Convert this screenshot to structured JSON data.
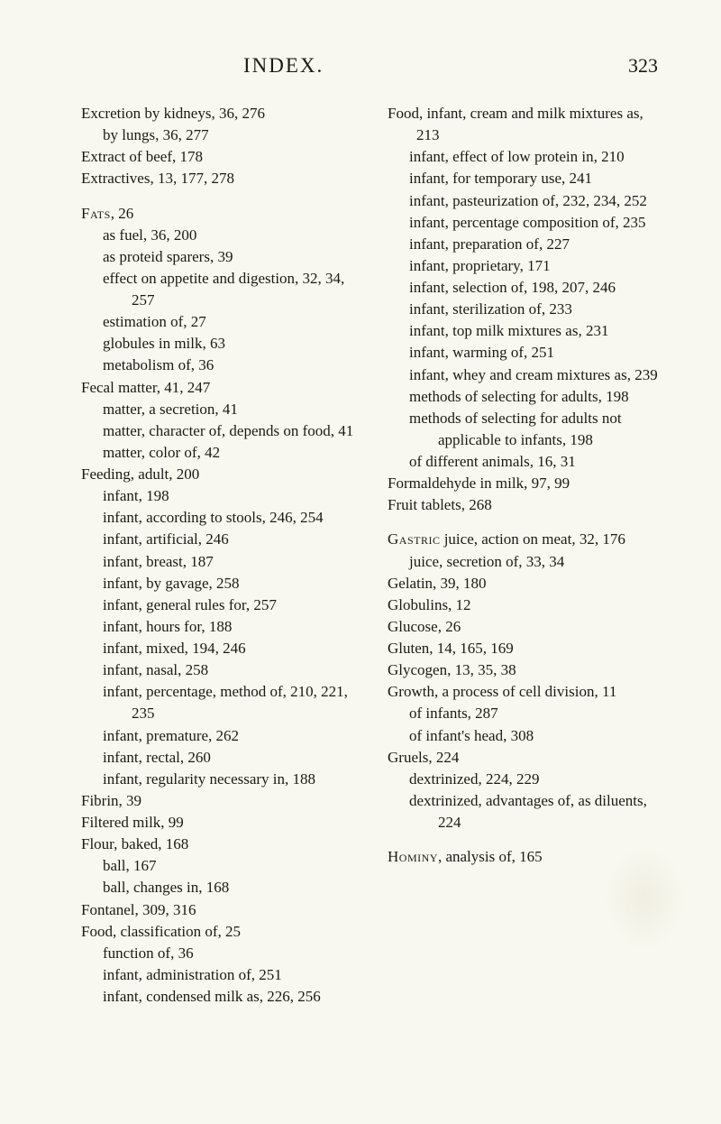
{
  "header": {
    "title": "INDEX.",
    "page_number": "323"
  },
  "left": [
    {
      "t": "entry",
      "text": "Excretion by kidneys, 36, 276"
    },
    {
      "t": "sub",
      "text": "by lungs, 36, 277"
    },
    {
      "t": "entry",
      "text": "Extract of beef, 178"
    },
    {
      "t": "entry",
      "text": "Extractives, 13, 177, 278"
    },
    {
      "t": "gap"
    },
    {
      "t": "entry",
      "topic": "Fats",
      "rest": ", 26"
    },
    {
      "t": "sub",
      "text": "as fuel, 36, 200"
    },
    {
      "t": "sub",
      "text": "as proteid sparers, 39"
    },
    {
      "t": "sub",
      "text": "effect on appetite and digestion, 32, 34, 257"
    },
    {
      "t": "sub",
      "text": "estimation of, 27"
    },
    {
      "t": "sub",
      "text": "globules in milk, 63"
    },
    {
      "t": "sub",
      "text": "metabolism of, 36"
    },
    {
      "t": "entry",
      "text": "Fecal matter, 41, 247"
    },
    {
      "t": "sub",
      "text": "matter, a secretion, 41"
    },
    {
      "t": "sub",
      "text": "matter, character of, depends on food, 41"
    },
    {
      "t": "sub",
      "text": "matter, color of, 42"
    },
    {
      "t": "entry",
      "text": "Feeding, adult, 200"
    },
    {
      "t": "sub",
      "text": "infant, 198"
    },
    {
      "t": "sub",
      "text": "infant, according to stools, 246, 254"
    },
    {
      "t": "sub",
      "text": "infant, artificial, 246"
    },
    {
      "t": "sub",
      "text": "infant, breast, 187"
    },
    {
      "t": "sub",
      "text": "infant, by gavage, 258"
    },
    {
      "t": "sub",
      "text": "infant, general rules for, 257"
    },
    {
      "t": "sub",
      "text": "infant, hours for, 188"
    },
    {
      "t": "sub",
      "text": "infant, mixed, 194, 246"
    },
    {
      "t": "sub",
      "text": "infant, nasal, 258"
    },
    {
      "t": "sub",
      "text": "infant, percentage, method of, 210, 221, 235"
    },
    {
      "t": "sub",
      "text": "infant, premature, 262"
    },
    {
      "t": "sub",
      "text": "infant, rectal, 260"
    },
    {
      "t": "sub",
      "text": "infant, regularity necessary in, 188"
    },
    {
      "t": "entry",
      "text": "Fibrin, 39"
    },
    {
      "t": "entry",
      "text": "Filtered milk, 99"
    },
    {
      "t": "entry",
      "text": "Flour, baked, 168"
    },
    {
      "t": "sub",
      "text": "ball, 167"
    },
    {
      "t": "sub",
      "text": "ball, changes in, 168"
    },
    {
      "t": "entry",
      "text": "Fontanel, 309, 316"
    },
    {
      "t": "entry",
      "text": "Food, classification of, 25"
    },
    {
      "t": "sub",
      "text": "function of, 36"
    },
    {
      "t": "sub",
      "text": "infant, administration of, 251"
    },
    {
      "t": "sub",
      "text": "infant, condensed milk as, 226, 256"
    }
  ],
  "right": [
    {
      "t": "entry",
      "text": "Food, infant, cream and milk mixtures as, 213"
    },
    {
      "t": "sub",
      "text": "infant, effect of low protein in, 210"
    },
    {
      "t": "sub",
      "text": "infant, for temporary use, 241"
    },
    {
      "t": "sub",
      "text": "infant, pasteurization of, 232, 234, 252"
    },
    {
      "t": "sub",
      "text": "infant, percentage composition of, 235"
    },
    {
      "t": "sub",
      "text": "infant, preparation of, 227"
    },
    {
      "t": "sub",
      "text": "infant, proprietary, 171"
    },
    {
      "t": "sub",
      "text": "infant, selection of, 198, 207, 246"
    },
    {
      "t": "sub",
      "text": "infant, sterilization of, 233"
    },
    {
      "t": "sub",
      "text": "infant, top milk mixtures as, 231"
    },
    {
      "t": "sub",
      "text": "infant, warming of, 251"
    },
    {
      "t": "sub",
      "text": "infant, whey and cream mixtures as, 239"
    },
    {
      "t": "sub",
      "text": "methods of selecting for adults, 198"
    },
    {
      "t": "sub",
      "text": "methods of selecting for adults not applicable to infants, 198"
    },
    {
      "t": "sub",
      "text": "of different animals, 16, 31"
    },
    {
      "t": "entry",
      "text": "Formaldehyde in milk, 97, 99"
    },
    {
      "t": "entry",
      "text": "Fruit tablets, 268"
    },
    {
      "t": "gap"
    },
    {
      "t": "entry",
      "topic": "Gastric",
      "rest": " juice, action on meat, 32, 176"
    },
    {
      "t": "sub",
      "text": "juice, secretion of, 33, 34"
    },
    {
      "t": "entry",
      "text": "Gelatin, 39, 180"
    },
    {
      "t": "entry",
      "text": "Globulins, 12"
    },
    {
      "t": "entry",
      "text": "Glucose, 26"
    },
    {
      "t": "entry",
      "text": "Gluten, 14, 165, 169"
    },
    {
      "t": "entry",
      "text": "Glycogen, 13, 35, 38"
    },
    {
      "t": "entry",
      "text": "Growth, a process of cell division, 11"
    },
    {
      "t": "sub",
      "text": "of infants, 287"
    },
    {
      "t": "sub",
      "text": "of infant's head, 308"
    },
    {
      "t": "entry",
      "text": "Gruels, 224"
    },
    {
      "t": "sub",
      "text": "dextrinized, 224, 229"
    },
    {
      "t": "sub",
      "text": "dextrinized, advantages of, as diluents, 224"
    },
    {
      "t": "gap"
    },
    {
      "t": "entry",
      "topic": "Hominy",
      "rest": ", analysis of, 165"
    }
  ]
}
